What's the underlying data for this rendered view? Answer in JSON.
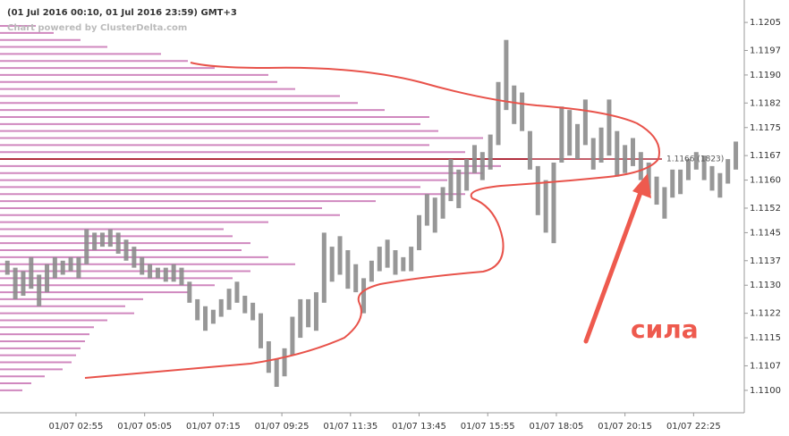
{
  "chart_data": {
    "type": "ohlc",
    "title": "(01 Jul 2016 00:10, 01 Jul 2016 23:59) GMT+3",
    "subtitle": "Chart powered by ClusterDelta.com",
    "x": [
      45,
      60,
      75,
      90,
      105,
      120,
      135,
      150,
      165,
      180,
      195,
      210,
      225,
      240,
      255,
      270,
      285,
      300,
      315,
      330,
      345,
      360,
      375,
      390,
      405,
      420,
      435,
      450,
      465,
      480,
      495,
      510,
      525,
      540,
      555,
      570,
      585,
      600,
      615,
      630,
      645,
      660,
      675,
      690,
      705,
      720,
      735,
      750,
      765,
      780,
      795,
      810,
      825,
      840,
      855,
      870,
      885,
      900,
      915,
      930,
      945,
      960,
      975,
      990,
      1005,
      1020,
      1035,
      1050,
      1065,
      1080,
      1095,
      1110,
      1125,
      1140,
      1155,
      1170,
      1185,
      1200,
      1215,
      1230,
      1245,
      1260,
      1275,
      1290,
      1305,
      1320,
      1335,
      1350,
      1365,
      1380,
      1395,
      1410,
      1425
    ],
    "high": [
      1.1137,
      1.1135,
      1.1134,
      1.1138,
      1.1133,
      1.1136,
      1.1138,
      1.1137,
      1.1138,
      1.1138,
      1.1146,
      1.1145,
      1.1145,
      1.1146,
      1.1145,
      1.1143,
      1.1141,
      1.1138,
      1.1136,
      1.1135,
      1.1135,
      1.1136,
      1.1135,
      1.1131,
      1.1126,
      1.1124,
      1.1123,
      1.1126,
      1.1129,
      1.1131,
      1.1127,
      1.1125,
      1.1122,
      1.1114,
      1.1109,
      1.1112,
      1.1121,
      1.1126,
      1.1126,
      1.1128,
      1.1145,
      1.1141,
      1.1144,
      1.114,
      1.1136,
      1.1132,
      1.1137,
      1.1141,
      1.1143,
      1.114,
      1.1138,
      1.1141,
      1.115,
      1.1156,
      1.1155,
      1.1158,
      1.1166,
      1.1163,
      1.1166,
      1.117,
      1.1168,
      1.1173,
      1.1188,
      1.12,
      1.1187,
      1.1185,
      1.1174,
      1.1164,
      1.116,
      1.1165,
      1.1181,
      1.118,
      1.1176,
      1.1183,
      1.1172,
      1.1175,
      1.1183,
      1.1174,
      1.117,
      1.1172,
      1.1168,
      1.1165,
      1.1161,
      1.1158,
      1.1163,
      1.1163,
      1.1166,
      1.1168,
      1.1167,
      1.1164,
      1.1162,
      1.1166,
      1.1171
    ],
    "low": [
      1.1133,
      1.1126,
      1.1127,
      1.1129,
      1.1124,
      1.1128,
      1.1132,
      1.1133,
      1.1134,
      1.1132,
      1.1136,
      1.114,
      1.1141,
      1.1141,
      1.1139,
      1.1137,
      1.1135,
      1.1133,
      1.1132,
      1.1132,
      1.1131,
      1.1131,
      1.113,
      1.1125,
      1.112,
      1.1117,
      1.1119,
      1.1121,
      1.1123,
      1.1125,
      1.1122,
      1.112,
      1.1112,
      1.1105,
      1.1101,
      1.1104,
      1.111,
      1.1115,
      1.1118,
      1.1117,
      1.1125,
      1.1131,
      1.1133,
      1.1129,
      1.1128,
      1.1122,
      1.1131,
      1.1134,
      1.1135,
      1.1133,
      1.1134,
      1.1134,
      1.114,
      1.1147,
      1.1145,
      1.1149,
      1.1154,
      1.1152,
      1.1157,
      1.1162,
      1.116,
      1.1163,
      1.117,
      1.118,
      1.1176,
      1.1174,
      1.1163,
      1.115,
      1.1145,
      1.1142,
      1.1165,
      1.1167,
      1.1166,
      1.117,
      1.1163,
      1.1165,
      1.1167,
      1.1161,
      1.1162,
      1.1164,
      1.116,
      1.1156,
      1.1153,
      1.1149,
      1.1155,
      1.1156,
      1.116,
      1.1163,
      1.116,
      1.1157,
      1.1155,
      1.1159,
      1.1163
    ],
    "color": "#8c8c8c",
    "profile": {
      "color": "#c874b4",
      "prices": [
        1.11,
        1.1102,
        1.1104,
        1.1106,
        1.1108,
        1.111,
        1.1112,
        1.1114,
        1.1116,
        1.1118,
        1.112,
        1.1122,
        1.1124,
        1.1126,
        1.1128,
        1.113,
        1.1132,
        1.1134,
        1.1136,
        1.1138,
        1.114,
        1.1142,
        1.1144,
        1.1146,
        1.1148,
        1.115,
        1.1152,
        1.1154,
        1.1156,
        1.1158,
        1.116,
        1.1162,
        1.1164,
        1.1166,
        1.1168,
        1.117,
        1.1172,
        1.1174,
        1.1176,
        1.1178,
        1.118,
        1.1182,
        1.1184,
        1.1186,
        1.1188,
        1.119,
        1.1192,
        1.1194,
        1.1196,
        1.1198,
        1.12,
        1.1202,
        1.1204
      ],
      "volumes": [
        25,
        35,
        50,
        70,
        80,
        85,
        90,
        95,
        100,
        105,
        120,
        150,
        140,
        160,
        210,
        240,
        260,
        280,
        330,
        300,
        270,
        280,
        260,
        250,
        300,
        380,
        360,
        420,
        520,
        470,
        500,
        540,
        560,
        590,
        520,
        480,
        540,
        490,
        470,
        480,
        430,
        400,
        380,
        330,
        310,
        300,
        240,
        210,
        180,
        120,
        90,
        60,
        40
      ],
      "poc_price": 1.1166,
      "poc_color": "#b02838",
      "poc_label": "1.1166 (1823)"
    },
    "annotation": "сила",
    "xlim": [
      31,
      1441
    ],
    "ylim": [
      1.10936,
      1.12114
    ],
    "xticks": [
      {
        "value": 175,
        "label": "01/07 02:55"
      },
      {
        "value": 305,
        "label": "01/07 05:05"
      },
      {
        "value": 435,
        "label": "01/07 07:15"
      },
      {
        "value": 565,
        "label": "01/07 09:25"
      },
      {
        "value": 695,
        "label": "01/07 11:35"
      },
      {
        "value": 825,
        "label": "01/07 13:45"
      },
      {
        "value": 955,
        "label": "01/07 15:55"
      },
      {
        "value": 1085,
        "label": "01/07 18:05"
      },
      {
        "value": 1215,
        "label": "01/07 20:15"
      },
      {
        "value": 1345,
        "label": "01/07 22:25"
      }
    ],
    "yticks": [
      1.1205,
      1.1197,
      {
        "value": 1.119,
        "label": "1.1190"
      },
      1.1182,
      1.1175,
      1.1167,
      {
        "value": 1.116,
        "label": "1.1160"
      },
      1.1152,
      1.1145,
      1.1137,
      {
        "value": 1.113,
        "label": "1.1130"
      },
      1.1122,
      1.1115,
      1.1107,
      {
        "value": 1.11,
        "label": "1.1100"
      }
    ]
  }
}
